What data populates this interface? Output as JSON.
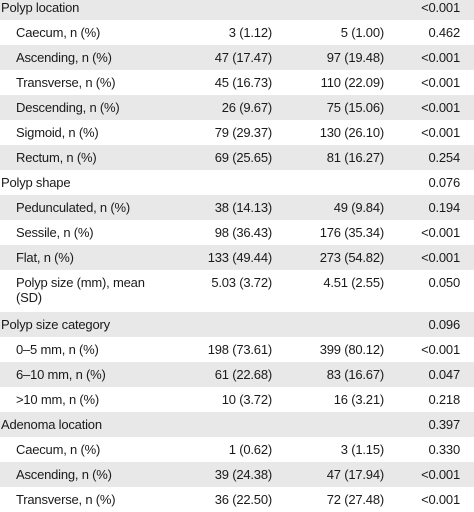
{
  "rows": [
    {
      "label": "Polyp location",
      "c1": "",
      "c2": "",
      "p": "<0.001",
      "section": true
    },
    {
      "label": "Caecum, n (%)",
      "c1": "3 (1.12)",
      "c2": "5 (1.00)",
      "p": "0.462"
    },
    {
      "label": "Ascending, n (%)",
      "c1": "47 (17.47)",
      "c2": "97 (19.48)",
      "p": "<0.001"
    },
    {
      "label": "Transverse, n (%)",
      "c1": "45 (16.73)",
      "c2": "110 (22.09)",
      "p": "<0.001"
    },
    {
      "label": "Descending, n (%)",
      "c1": "26 (9.67)",
      "c2": "75 (15.06)",
      "p": "<0.001"
    },
    {
      "label": "Sigmoid, n (%)",
      "c1": "79 (29.37)",
      "c2": "130 (26.10)",
      "p": "<0.001"
    },
    {
      "label": "Rectum, n (%)",
      "c1": "69 (25.65)",
      "c2": "81 (16.27)",
      "p": "0.254"
    },
    {
      "label": "Polyp shape",
      "c1": "",
      "c2": "",
      "p": "0.076",
      "section": true
    },
    {
      "label": "Pedunculated, n (%)",
      "c1": "38 (14.13)",
      "c2": "49 (9.84)",
      "p": "0.194"
    },
    {
      "label": "Sessile, n (%)",
      "c1": "98 (36.43)",
      "c2": "176 (35.34)",
      "p": "<0.001"
    },
    {
      "label": "Flat, n (%)",
      "c1": "133 (49.44)",
      "c2": "273 (54.82)",
      "p": "<0.001"
    },
    {
      "label": "Polyp size (mm), mean",
      "label2": "(SD)",
      "c1": "5.03 (3.72)",
      "c2": "4.51 (2.55)",
      "p": "0.050",
      "tall": true
    },
    {
      "label": "Polyp size category",
      "c1": "",
      "c2": "",
      "p": "0.096",
      "section": true
    },
    {
      "label": "0–5 mm, n (%)",
      "c1": "198 (73.61)",
      "c2": "399 (80.12)",
      "p": "<0.001"
    },
    {
      "label": "6–10 mm, n (%)",
      "c1": "61 (22.68)",
      "c2": "83 (16.67)",
      "p": "0.047"
    },
    {
      "label": ">10 mm, n (%)",
      "c1": "10 (3.72)",
      "c2": "16 (3.21)",
      "p": "0.218"
    },
    {
      "label": "Adenoma location",
      "c1": "",
      "c2": "",
      "p": "0.397",
      "section": true
    },
    {
      "label": "Caecum, n (%)",
      "c1": "1 (0.62)",
      "c2": "3 (1.15)",
      "p": "0.330"
    },
    {
      "label": "Ascending, n (%)",
      "c1": "39 (24.38)",
      "c2": "47 (17.94)",
      "p": "<0.001"
    },
    {
      "label": "Transverse, n (%)",
      "c1": "36 (22.50)",
      "c2": "72 (27.48)",
      "p": "<0.001"
    }
  ]
}
